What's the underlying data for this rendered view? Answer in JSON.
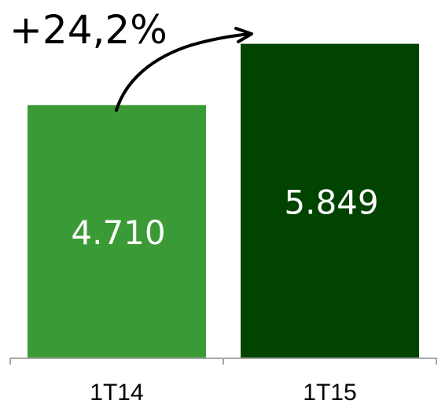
{
  "chart_data": {
    "type": "bar",
    "categories": [
      "1T14",
      "1T15"
    ],
    "values": [
      4710,
      5849
    ],
    "value_labels": [
      "4.710",
      "5.849"
    ],
    "colors": [
      "#3a9a35",
      "#004400"
    ],
    "ylim": [
      0,
      6400
    ],
    "grid": false,
    "annotation": "+24,2%"
  }
}
